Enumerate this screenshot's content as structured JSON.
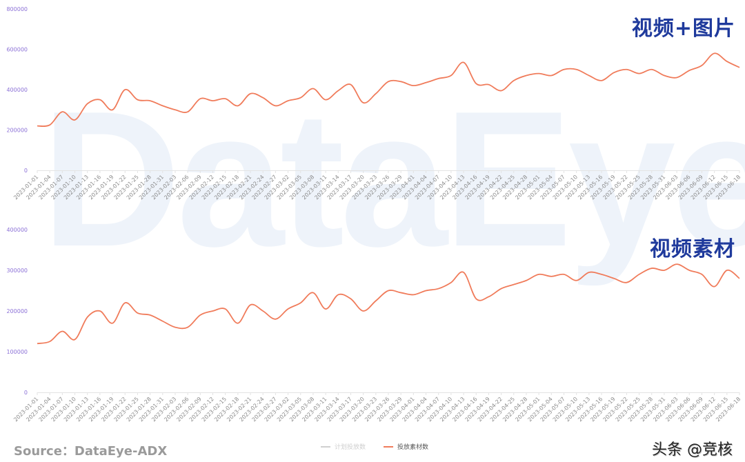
{
  "watermark": "DataEye",
  "source": "Source：DataEye-ADX",
  "credit": "头条 @竞核",
  "legend": [
    {
      "label": "计划投放数",
      "color": "#cfcfcf",
      "active": false
    },
    {
      "label": "投放素材数",
      "color": "#f07b5a",
      "active": true
    }
  ],
  "colors": {
    "line": "#f07b5a",
    "title": "#1f3a9c",
    "ytick": "#8a6fd6",
    "xtick": "#8a8a8a",
    "axis": "#e3e3e3"
  },
  "chart_data": [
    {
      "type": "line",
      "title": "视频+图片",
      "xlabel": "",
      "ylabel": "",
      "ylim": [
        0,
        800000
      ],
      "yticks": [
        0,
        200000,
        400000,
        600000,
        800000
      ],
      "grid": false,
      "legend_position": "bottom",
      "categories": [
        "2023-01-01",
        "2023-01-04",
        "2023-01-07",
        "2023-01-10",
        "2023-01-13",
        "2023-01-16",
        "2023-01-19",
        "2023-01-22",
        "2023-01-25",
        "2023-01-28",
        "2023-01-31",
        "2023-02-03",
        "2023-02-06",
        "2023-02-09",
        "2023-02-12",
        "2023-02-15",
        "2023-02-18",
        "2023-02-21",
        "2023-02-24",
        "2023-02-27",
        "2023-03-02",
        "2023-03-05",
        "2023-03-08",
        "2023-03-11",
        "2023-03-14",
        "2023-03-17",
        "2023-03-20",
        "2023-03-23",
        "2023-03-26",
        "2023-03-29",
        "2023-04-01",
        "2023-04-04",
        "2023-04-07",
        "2023-04-10",
        "2023-04-13",
        "2023-04-16",
        "2023-04-19",
        "2023-04-22",
        "2023-04-25",
        "2023-04-28",
        "2023-05-01",
        "2023-05-04",
        "2023-05-07",
        "2023-05-10",
        "2023-05-13",
        "2023-05-16",
        "2023-05-19",
        "2023-05-22",
        "2023-05-25",
        "2023-05-28",
        "2023-05-31",
        "2023-06-03",
        "2023-06-06",
        "2023-06-09",
        "2023-06-12",
        "2023-06-15",
        "2023-06-18"
      ],
      "series": [
        {
          "name": "投放素材数",
          "values": [
            220000,
            225000,
            290000,
            250000,
            330000,
            350000,
            300000,
            400000,
            350000,
            345000,
            320000,
            300000,
            290000,
            355000,
            345000,
            355000,
            320000,
            380000,
            360000,
            320000,
            345000,
            360000,
            405000,
            350000,
            395000,
            425000,
            335000,
            380000,
            440000,
            440000,
            420000,
            435000,
            455000,
            470000,
            535000,
            430000,
            425000,
            395000,
            445000,
            470000,
            480000,
            470000,
            500000,
            500000,
            470000,
            445000,
            485000,
            500000,
            480000,
            500000,
            470000,
            460000,
            495000,
            520000,
            580000,
            540000,
            510000
          ]
        }
      ]
    },
    {
      "type": "line",
      "title": "视频素材",
      "xlabel": "",
      "ylabel": "",
      "ylim": [
        0,
        400000
      ],
      "yticks": [
        0,
        100000,
        200000,
        300000,
        400000
      ],
      "grid": false,
      "legend_position": "bottom",
      "categories": [
        "2023-01-01",
        "2023-01-04",
        "2023-01-07",
        "2023-01-10",
        "2023-01-13",
        "2023-01-16",
        "2023-01-19",
        "2023-01-22",
        "2023-01-25",
        "2023-01-28",
        "2023-01-31",
        "2023-02-03",
        "2023-02-06",
        "2023-02-09",
        "2023-02-12",
        "2023-02-15",
        "2023-02-18",
        "2023-02-21",
        "2023-02-24",
        "2023-02-27",
        "2023-03-02",
        "2023-03-05",
        "2023-03-08",
        "2023-03-11",
        "2023-03-14",
        "2023-03-17",
        "2023-03-20",
        "2023-03-23",
        "2023-03-26",
        "2023-03-29",
        "2023-04-01",
        "2023-04-04",
        "2023-04-07",
        "2023-04-10",
        "2023-04-13",
        "2023-04-16",
        "2023-04-19",
        "2023-04-22",
        "2023-04-25",
        "2023-04-28",
        "2023-05-01",
        "2023-05-04",
        "2023-05-07",
        "2023-05-10",
        "2023-05-13",
        "2023-05-16",
        "2023-05-19",
        "2023-05-22",
        "2023-05-25",
        "2023-05-28",
        "2023-05-31",
        "2023-06-03",
        "2023-06-06",
        "2023-06-09",
        "2023-06-12",
        "2023-06-15",
        "2023-06-18"
      ],
      "series": [
        {
          "name": "投放素材数",
          "values": [
            120000,
            125000,
            150000,
            130000,
            185000,
            200000,
            170000,
            220000,
            195000,
            190000,
            175000,
            160000,
            160000,
            190000,
            200000,
            205000,
            170000,
            215000,
            200000,
            180000,
            205000,
            220000,
            245000,
            205000,
            240000,
            230000,
            200000,
            225000,
            250000,
            245000,
            240000,
            250000,
            255000,
            270000,
            295000,
            230000,
            235000,
            255000,
            265000,
            275000,
            290000,
            285000,
            290000,
            275000,
            295000,
            290000,
            280000,
            270000,
            290000,
            305000,
            300000,
            315000,
            300000,
            290000,
            260000,
            300000,
            280000
          ]
        }
      ]
    }
  ]
}
